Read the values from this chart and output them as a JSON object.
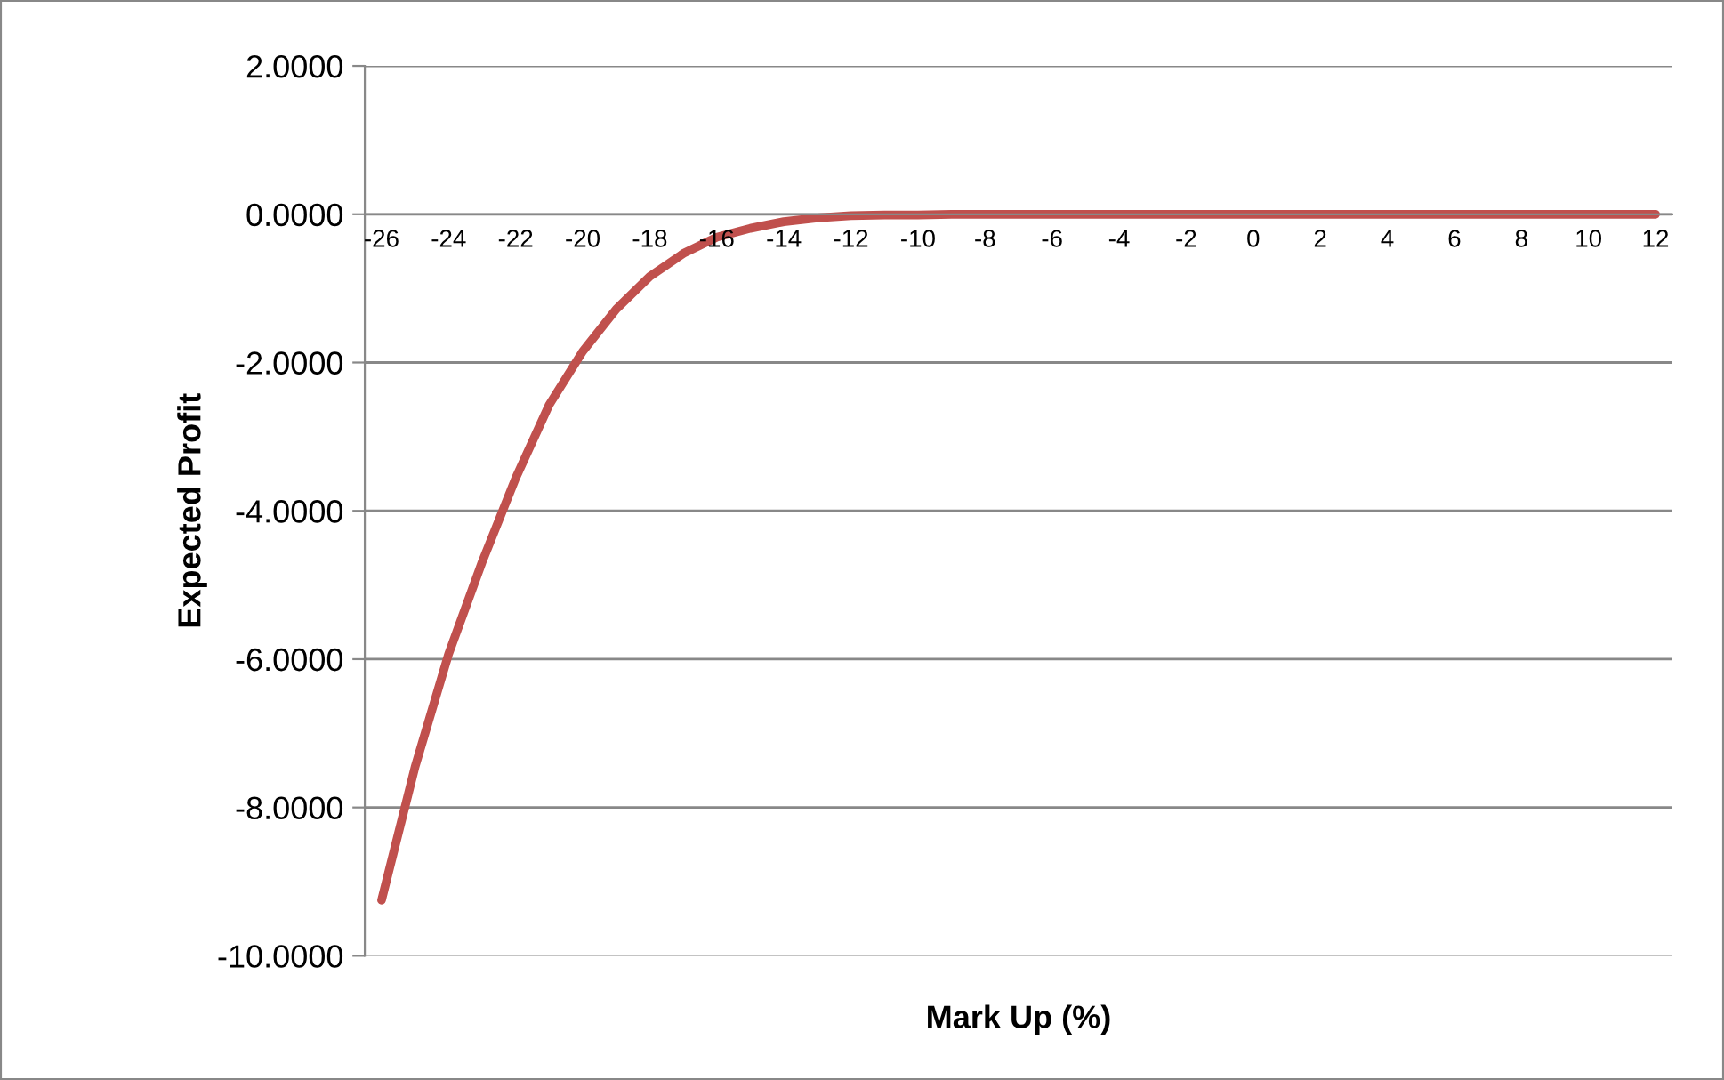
{
  "chart_data": {
    "type": "line",
    "xlabel": "Mark Up (%)",
    "ylabel": "Expected Profit",
    "categories": [
      "-26",
      null,
      "-24",
      null,
      "-22",
      null,
      "-20",
      null,
      "-18",
      null,
      "-16",
      null,
      "-14",
      null,
      "-12",
      null,
      "-10",
      null,
      "-8",
      null,
      "-6",
      null,
      "-4",
      null,
      "-2",
      null,
      "0",
      null,
      "2",
      null,
      "4",
      null,
      "6",
      null,
      "8",
      null,
      "10",
      null,
      "12"
    ],
    "series": [
      {
        "color": "#c0504d",
        "values": [
          -9.25,
          -7.45,
          -5.93,
          -4.69,
          -3.56,
          -2.57,
          -1.85,
          -1.28,
          -0.84,
          -0.53,
          -0.31,
          -0.19,
          -0.1,
          -0.05,
          -0.02,
          -0.01,
          -0.01,
          0,
          0,
          0,
          0,
          0,
          0,
          0,
          0,
          0,
          0,
          0,
          0,
          0,
          0,
          0,
          0,
          0,
          0,
          0,
          0,
          0,
          0
        ]
      }
    ],
    "ylim": [
      -10,
      2
    ],
    "yticks": [
      {
        "value": -10,
        "label": "-10.0000"
      },
      {
        "value": -8,
        "label": "-8.0000"
      },
      {
        "value": -6,
        "label": "-6.0000"
      },
      {
        "value": -4,
        "label": "-4.0000"
      },
      {
        "value": -2,
        "label": "-2.0000"
      },
      {
        "value": 0,
        "label": "0.0000"
      },
      {
        "value": 2,
        "label": "2.0000"
      }
    ],
    "grid": "y",
    "legend": false,
    "marker": "none",
    "line_style": "solid"
  }
}
